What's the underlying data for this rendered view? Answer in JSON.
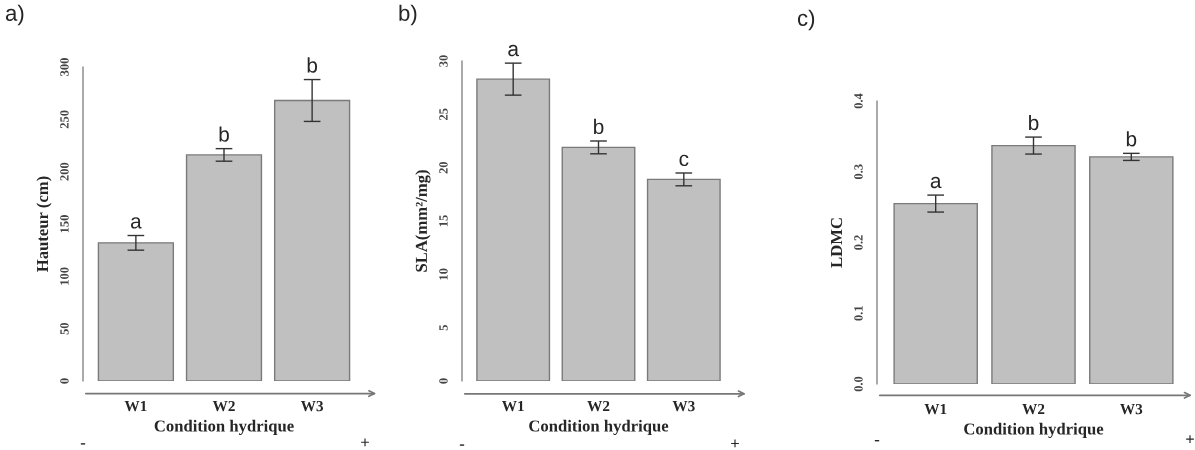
{
  "chart_data": [
    {
      "type": "bar",
      "title": "a)",
      "ylabel": "Hauteur (cm)",
      "xlabel": "Condition hydrique",
      "categories": [
        "W1",
        "W2",
        "W3"
      ],
      "values": [
        132,
        216,
        268
      ],
      "errors": [
        7,
        6,
        20
      ],
      "color": "#c0c0c0",
      "ylim": [
        0,
        300
      ],
      "yticks": [
        0,
        50,
        100,
        150,
        200,
        250,
        300
      ],
      "annotations": [
        {
          "text": "a",
          "x": "W1",
          "y": 139
        },
        {
          "text": "b",
          "x": "W2",
          "y": 222
        },
        {
          "text": "b",
          "x": "W3",
          "y": 288
        },
        "-",
        "+"
      ]
    },
    {
      "type": "bar",
      "title": "b)",
      "ylabel": "SLA(mm²/mg)",
      "xlabel": "Condition hydrique",
      "categories": [
        "W1",
        "W2",
        "W3"
      ],
      "values": [
        28.3,
        21.9,
        18.9
      ],
      "errors": [
        1.5,
        0.6,
        0.6
      ],
      "color": "#c0c0c0",
      "ylim": [
        0,
        30
      ],
      "yticks": [
        0,
        5,
        10,
        15,
        20,
        25,
        30
      ],
      "annotations": [
        {
          "text": "a",
          "x": "W1",
          "y": 29.8
        },
        {
          "text": "b",
          "x": "W2",
          "y": 22.5
        },
        {
          "text": "c",
          "x": "W3",
          "y": 19.5
        },
        "-",
        "+"
      ]
    },
    {
      "type": "bar",
      "title": "c)",
      "ylabel": "LDMC",
      "xlabel": "Condition hydrique",
      "categories": [
        "W1",
        "W2",
        "W3"
      ],
      "values": [
        0.255,
        0.337,
        0.321
      ],
      "errors": [
        0.012,
        0.012,
        0.005
      ],
      "color": "#c0c0c0",
      "ylim": [
        0,
        0.4
      ],
      "yticks": [
        {
          "value": 0,
          "label": "0.0"
        },
        0.1,
        0.2,
        0.3,
        0.4
      ],
      "annotations": [
        {
          "text": "a",
          "x": "W1",
          "y": 0.267
        },
        {
          "text": "b",
          "x": "W2",
          "y": 0.349
        },
        {
          "text": "b",
          "x": "W3",
          "y": 0.326
        },
        "-",
        "+"
      ]
    }
  ]
}
